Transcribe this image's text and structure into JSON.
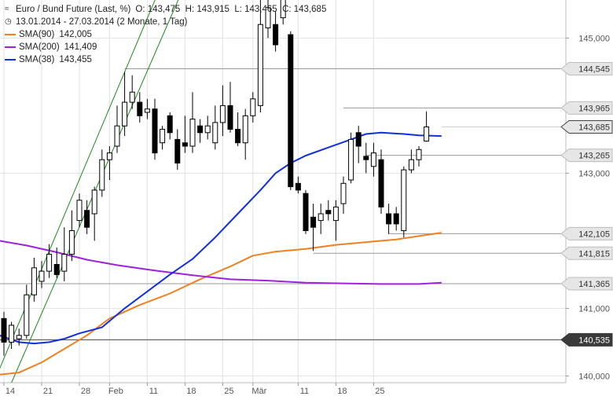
{
  "header": {
    "icon": "chart-icon",
    "title": "Euro / Bund Future (Last, %)",
    "ohlc": "O: 143,475  H: 143,915  L: 143,465  C: 143,685",
    "range": "13.01.2014 - 27.03.2014 (2 Monate, 1 Tag)",
    "range_icon": "clock-icon"
  },
  "legend": [
    {
      "name": "SMA(90)",
      "value": "142,005",
      "color": "#f08020"
    },
    {
      "name": "SMA(200)",
      "value": "141,409",
      "color": "#a020e0"
    },
    {
      "name": "SMA(38)",
      "value": "143,455",
      "color": "#1030e0"
    }
  ],
  "chart_data": {
    "type": "candlestick",
    "title": "Euro / Bund Future (Last, %)",
    "ylim": [
      139.9,
      145.4
    ],
    "y_ticks": [
      "140,000",
      "141,000",
      "143,000",
      "145,000"
    ],
    "x_ticks": [
      {
        "i": 0,
        "label": "14"
      },
      {
        "i": 5,
        "label": "21"
      },
      {
        "i": 10,
        "label": "28"
      },
      {
        "i": 14,
        "label": "Feb"
      },
      {
        "i": 19,
        "label": "11"
      },
      {
        "i": 24,
        "label": "18"
      },
      {
        "i": 29,
        "label": "25"
      },
      {
        "i": 33,
        "label": "Mär"
      },
      {
        "i": 39,
        "label": "11"
      },
      {
        "i": 44,
        "label": "18"
      },
      {
        "i": 49,
        "label": "25"
      }
    ],
    "candles": [
      {
        "o": 140.85,
        "h": 140.95,
        "l": 140.3,
        "c": 140.5
      },
      {
        "o": 140.5,
        "h": 140.8,
        "l": 140.4,
        "c": 140.75
      },
      {
        "o": 140.55,
        "h": 140.7,
        "l": 140.45,
        "c": 140.6
      },
      {
        "o": 140.6,
        "h": 141.35,
        "l": 140.55,
        "c": 141.2
      },
      {
        "o": 141.2,
        "h": 141.75,
        "l": 141.1,
        "c": 141.6
      },
      {
        "o": 141.4,
        "h": 141.7,
        "l": 141.3,
        "c": 141.55
      },
      {
        "o": 141.55,
        "h": 141.95,
        "l": 141.45,
        "c": 141.8
      },
      {
        "o": 141.65,
        "h": 141.9,
        "l": 141.45,
        "c": 141.5
      },
      {
        "o": 141.55,
        "h": 142.2,
        "l": 141.4,
        "c": 141.8
      },
      {
        "o": 141.8,
        "h": 142.45,
        "l": 141.7,
        "c": 142.15
      },
      {
        "o": 142.3,
        "h": 142.7,
        "l": 142.2,
        "c": 142.6
      },
      {
        "o": 142.45,
        "h": 142.6,
        "l": 142.1,
        "c": 142.2
      },
      {
        "o": 142.4,
        "h": 142.8,
        "l": 142.0,
        "c": 142.75
      },
      {
        "o": 142.75,
        "h": 143.35,
        "l": 142.65,
        "c": 143.2
      },
      {
        "o": 143.2,
        "h": 143.4,
        "l": 142.9,
        "c": 143.3
      },
      {
        "o": 143.4,
        "h": 144.0,
        "l": 143.3,
        "c": 143.7
      },
      {
        "o": 143.7,
        "h": 144.5,
        "l": 143.55,
        "c": 144.05
      },
      {
        "o": 144.05,
        "h": 144.45,
        "l": 143.95,
        "c": 144.2
      },
      {
        "o": 144.05,
        "h": 144.2,
        "l": 143.75,
        "c": 143.85
      },
      {
        "o": 143.9,
        "h": 144.1,
        "l": 143.8,
        "c": 143.95
      },
      {
        "o": 143.95,
        "h": 144.1,
        "l": 143.2,
        "c": 143.3
      },
      {
        "o": 143.45,
        "h": 143.7,
        "l": 143.35,
        "c": 143.65
      },
      {
        "o": 143.85,
        "h": 143.9,
        "l": 143.5,
        "c": 143.6
      },
      {
        "o": 143.5,
        "h": 143.65,
        "l": 143.05,
        "c": 143.15
      },
      {
        "o": 143.45,
        "h": 143.85,
        "l": 143.3,
        "c": 143.4
      },
      {
        "o": 143.4,
        "h": 144.2,
        "l": 143.3,
        "c": 143.8
      },
      {
        "o": 143.7,
        "h": 143.8,
        "l": 143.45,
        "c": 143.6
      },
      {
        "o": 143.6,
        "h": 143.85,
        "l": 143.5,
        "c": 143.7
      },
      {
        "o": 143.45,
        "h": 144.0,
        "l": 143.35,
        "c": 143.75
      },
      {
        "o": 143.75,
        "h": 144.3,
        "l": 143.55,
        "c": 144.0
      },
      {
        "o": 144.0,
        "h": 144.35,
        "l": 143.6,
        "c": 143.65
      },
      {
        "o": 143.65,
        "h": 143.9,
        "l": 143.4,
        "c": 143.45
      },
      {
        "o": 143.45,
        "h": 143.95,
        "l": 143.2,
        "c": 143.85
      },
      {
        "o": 143.85,
        "h": 144.2,
        "l": 143.75,
        "c": 144.1
      },
      {
        "o": 144.0,
        "h": 145.7,
        "l": 143.9,
        "c": 145.2
      },
      {
        "o": 145.15,
        "h": 145.6,
        "l": 145.0,
        "c": 145.45
      },
      {
        "o": 145.2,
        "h": 145.4,
        "l": 144.8,
        "c": 144.9
      },
      {
        "o": 145.3,
        "h": 145.7,
        "l": 145.2,
        "c": 145.6
      },
      {
        "o": 145.05,
        "h": 145.1,
        "l": 142.75,
        "c": 142.8
      },
      {
        "o": 142.85,
        "h": 142.95,
        "l": 142.7,
        "c": 142.75
      },
      {
        "o": 142.7,
        "h": 142.75,
        "l": 142.1,
        "c": 142.15
      },
      {
        "o": 142.35,
        "h": 142.55,
        "l": 141.85,
        "c": 142.2
      },
      {
        "o": 142.3,
        "h": 142.55,
        "l": 142.1,
        "c": 142.4
      },
      {
        "o": 142.45,
        "h": 142.6,
        "l": 142.3,
        "c": 142.4
      },
      {
        "o": 142.3,
        "h": 142.6,
        "l": 142.0,
        "c": 142.5
      },
      {
        "o": 142.55,
        "h": 142.95,
        "l": 142.4,
        "c": 142.85
      },
      {
        "o": 142.9,
        "h": 143.6,
        "l": 142.85,
        "c": 143.5
      },
      {
        "o": 143.6,
        "h": 143.7,
        "l": 143.15,
        "c": 143.4
      },
      {
        "o": 143.25,
        "h": 143.45,
        "l": 143.0,
        "c": 143.2
      },
      {
        "o": 143.1,
        "h": 143.45,
        "l": 142.95,
        "c": 143.3
      },
      {
        "o": 143.2,
        "h": 143.35,
        "l": 142.4,
        "c": 142.5
      },
      {
        "o": 142.4,
        "h": 142.55,
        "l": 142.1,
        "c": 142.25
      },
      {
        "o": 142.4,
        "h": 142.5,
        "l": 142.15,
        "c": 142.25
      },
      {
        "o": 142.15,
        "h": 143.1,
        "l": 142.05,
        "c": 143.05
      },
      {
        "o": 143.05,
        "h": 143.35,
        "l": 143.0,
        "c": 143.2
      },
      {
        "o": 143.2,
        "h": 143.4,
        "l": 143.1,
        "c": 143.35
      },
      {
        "o": 143.475,
        "h": 143.915,
        "l": 143.465,
        "c": 143.685
      }
    ],
    "series": [
      {
        "name": "SMA(90)",
        "color": "#f08020",
        "values": [
          {
            "i": -0.6,
            "y": 140.02
          },
          {
            "i": 2,
            "y": 140.05
          },
          {
            "i": 5,
            "y": 140.2
          },
          {
            "i": 8,
            "y": 140.4
          },
          {
            "i": 11,
            "y": 140.6
          },
          {
            "i": 14,
            "y": 140.85
          },
          {
            "i": 18,
            "y": 141.05
          },
          {
            "i": 22,
            "y": 141.22
          },
          {
            "i": 26,
            "y": 141.43
          },
          {
            "i": 30,
            "y": 141.62
          },
          {
            "i": 33,
            "y": 141.78
          },
          {
            "i": 36,
            "y": 141.84
          },
          {
            "i": 40,
            "y": 141.88
          },
          {
            "i": 44,
            "y": 141.94
          },
          {
            "i": 48,
            "y": 141.98
          },
          {
            "i": 52,
            "y": 142.02
          },
          {
            "i": 55,
            "y": 142.07
          },
          {
            "i": 58,
            "y": 142.12
          }
        ]
      },
      {
        "name": "SMA(200)",
        "color": "#a020e0",
        "values": [
          {
            "i": -0.6,
            "y": 142.0
          },
          {
            "i": 3,
            "y": 141.93
          },
          {
            "i": 7,
            "y": 141.83
          },
          {
            "i": 11,
            "y": 141.72
          },
          {
            "i": 15,
            "y": 141.64
          },
          {
            "i": 20,
            "y": 141.56
          },
          {
            "i": 25,
            "y": 141.49
          },
          {
            "i": 30,
            "y": 141.43
          },
          {
            "i": 35,
            "y": 141.41
          },
          {
            "i": 40,
            "y": 141.38
          },
          {
            "i": 45,
            "y": 141.37
          },
          {
            "i": 50,
            "y": 141.36
          },
          {
            "i": 55,
            "y": 141.36
          },
          {
            "i": 58,
            "y": 141.38
          }
        ]
      },
      {
        "name": "SMA(38)",
        "color": "#1030e0",
        "values": [
          {
            "i": -0.6,
            "y": 140.6
          },
          {
            "i": 2,
            "y": 140.5
          },
          {
            "i": 4,
            "y": 140.48
          },
          {
            "i": 6,
            "y": 140.5
          },
          {
            "i": 8,
            "y": 140.55
          },
          {
            "i": 10,
            "y": 140.63
          },
          {
            "i": 13,
            "y": 140.72
          },
          {
            "i": 16,
            "y": 141.0
          },
          {
            "i": 19,
            "y": 141.25
          },
          {
            "i": 22,
            "y": 141.5
          },
          {
            "i": 25,
            "y": 141.73
          },
          {
            "i": 28,
            "y": 142.05
          },
          {
            "i": 31,
            "y": 142.4
          },
          {
            "i": 34,
            "y": 142.75
          },
          {
            "i": 36,
            "y": 143.0
          },
          {
            "i": 38,
            "y": 143.15
          },
          {
            "i": 40,
            "y": 143.26
          },
          {
            "i": 43,
            "y": 143.38
          },
          {
            "i": 46,
            "y": 143.5
          },
          {
            "i": 48,
            "y": 143.58
          },
          {
            "i": 50,
            "y": 143.6
          },
          {
            "i": 53,
            "y": 143.58
          },
          {
            "i": 55,
            "y": 143.56
          },
          {
            "i": 58,
            "y": 143.55
          }
        ]
      }
    ],
    "trend_channel": [
      {
        "i1": -0.6,
        "y1": 140.1,
        "i2": 33,
        "y2": 149.0
      },
      {
        "i1": 1,
        "y1": 139.9,
        "i2": 33,
        "y2": 148.1
      }
    ],
    "levels": [
      {
        "value": 144.545,
        "label": "144,545",
        "from_i": 16,
        "style": "grey"
      },
      {
        "value": 143.965,
        "label": "143,965",
        "from_i": 45,
        "style": "grey"
      },
      {
        "value": 143.685,
        "label": "143,685",
        "from_i": 58,
        "style": "last"
      },
      {
        "value": 143.265,
        "label": "143,265",
        "from_i": 48,
        "style": "grey"
      },
      {
        "value": 142.105,
        "label": "142,105",
        "from_i": 51,
        "style": "grey"
      },
      {
        "value": 141.815,
        "label": "141,815",
        "from_i": 41,
        "style": "grey"
      },
      {
        "value": 141.365,
        "label": "141,365",
        "from_i": -0.6,
        "style": "grey"
      },
      {
        "value": 140.535,
        "label": "140,535",
        "from_i": -0.6,
        "style": "dark"
      }
    ],
    "grid": true
  }
}
